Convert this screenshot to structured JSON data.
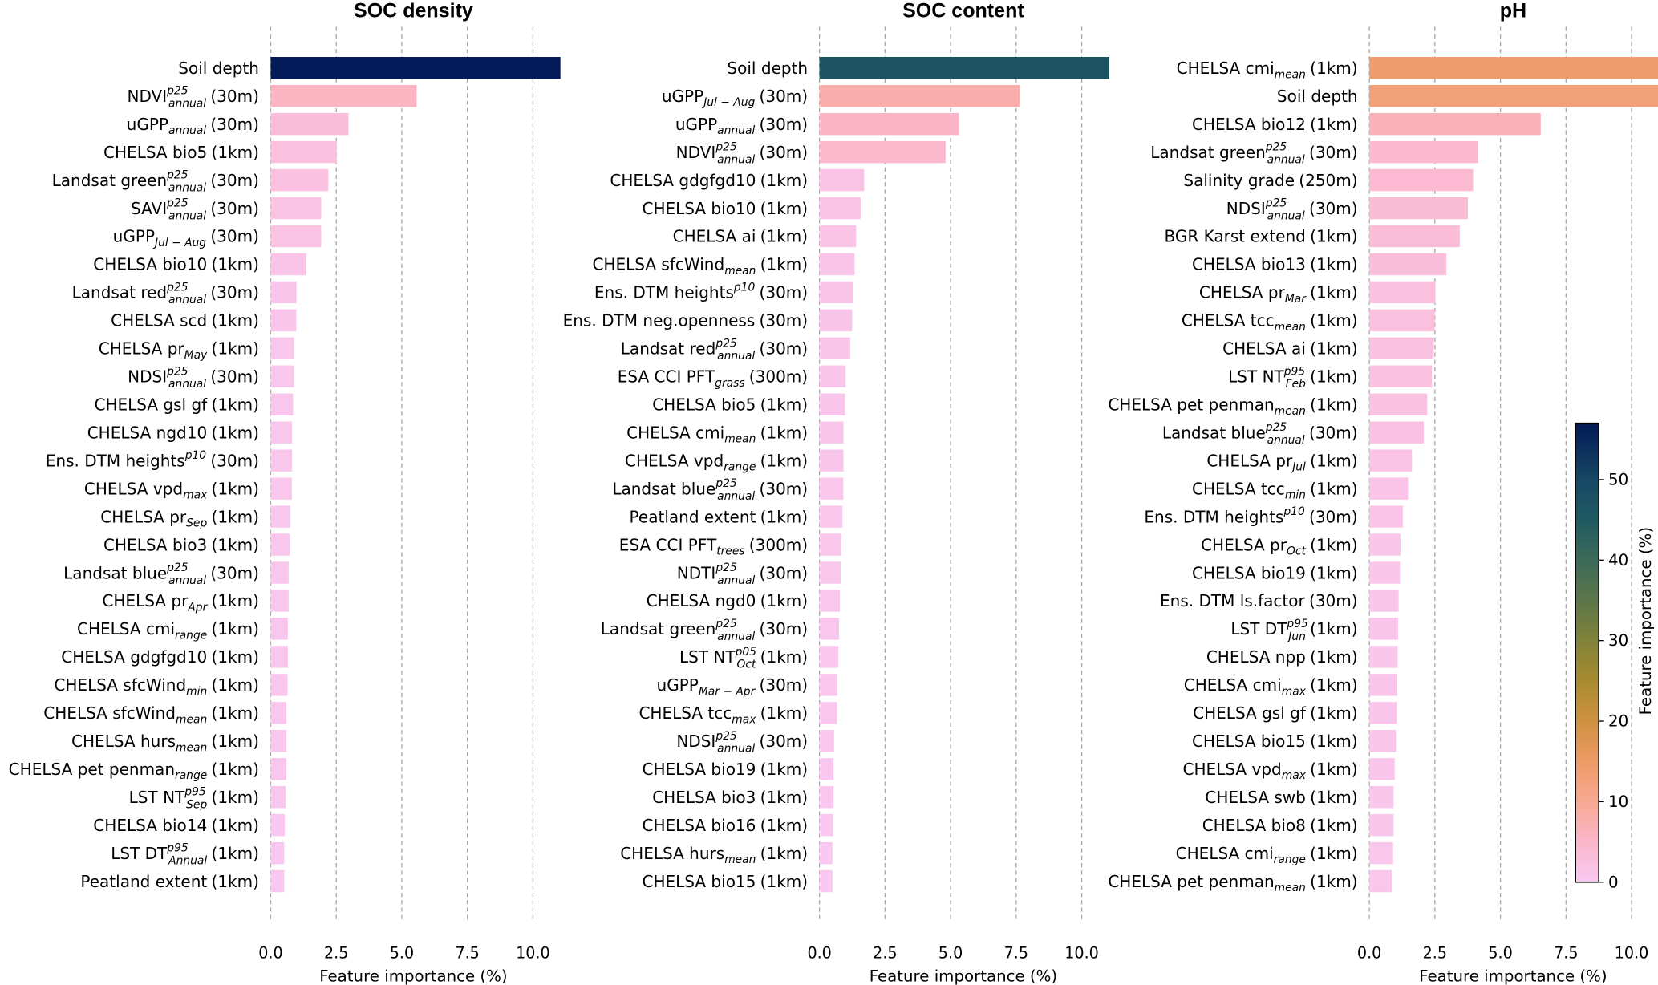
{
  "chart_data": [
    {
      "type": "bar",
      "orientation": "horizontal",
      "title": "SOC density",
      "xlabel": "Feature importance (%)",
      "xlim": [
        0,
        11
      ],
      "xticks": [
        "0.0",
        "2.5",
        "5.0",
        "7.5",
        "10.0"
      ],
      "xtick_values": [
        0,
        2.5,
        5,
        7.5,
        10
      ],
      "grid": "vertical dashed",
      "features": [
        {
          "base": "Soil depth",
          "sub": "",
          "sup": "",
          "res": "",
          "value": 57
        },
        {
          "base": "NDVI",
          "sub": "annual",
          "sup": "p25",
          "res": "(30m)",
          "value": 5.55
        },
        {
          "base": "uGPP",
          "sub": "annual",
          "sup": "",
          "res": "(30m)",
          "value": 2.95
        },
        {
          "base": "CHELSA bio5",
          "sub": "",
          "sup": "",
          "res": "(1km)",
          "value": 2.5
        },
        {
          "base": "Landsat green",
          "sub": "annual",
          "sup": "p25",
          "res": "(30m)",
          "value": 2.18
        },
        {
          "base": "SAVI",
          "sub": "annual",
          "sup": "p25",
          "res": "(30m)",
          "value": 1.91
        },
        {
          "base": "uGPP",
          "sub": "Jul − Aug",
          "sup": "",
          "res": "(30m)",
          "value": 1.91
        },
        {
          "base": "CHELSA bio10",
          "sub": "",
          "sup": "",
          "res": "(1km)",
          "value": 1.34
        },
        {
          "base": "Landsat red",
          "sub": "annual",
          "sup": "p25",
          "res": "(30m)",
          "value": 0.97
        },
        {
          "base": "CHELSA scd",
          "sub": "",
          "sup": "",
          "res": "(1km)",
          "value": 0.96
        },
        {
          "base": "CHELSA pr",
          "sub": "May",
          "sup": "",
          "res": "(1km)",
          "value": 0.87
        },
        {
          "base": "NDSI",
          "sub": "annual",
          "sup": "p25",
          "res": "(30m)",
          "value": 0.87
        },
        {
          "base": "CHELSA gsl gf",
          "sub": "",
          "sup": "",
          "res": "(1km)",
          "value": 0.84
        },
        {
          "base": "CHELSA ngd10",
          "sub": "",
          "sup": "",
          "res": "(1km)",
          "value": 0.8
        },
        {
          "base": "Ens. DTM heights",
          "sub": "",
          "sup": "p10",
          "res": "(30m)",
          "value": 0.8
        },
        {
          "base": "CHELSA vpd",
          "sub": "max",
          "sup": "",
          "res": "(1km)",
          "value": 0.79
        },
        {
          "base": "CHELSA pr",
          "sub": "Sep",
          "sup": "",
          "res": "(1km)",
          "value": 0.73
        },
        {
          "base": "CHELSA bio3",
          "sub": "",
          "sup": "",
          "res": "(1km)",
          "value": 0.71
        },
        {
          "base": "Landsat blue",
          "sub": "annual",
          "sup": "p25",
          "res": "(30m)",
          "value": 0.67
        },
        {
          "base": "CHELSA pr",
          "sub": "Apr",
          "sup": "",
          "res": "(1km)",
          "value": 0.67
        },
        {
          "base": "CHELSA cmi",
          "sub": "range",
          "sup": "",
          "res": "(1km)",
          "value": 0.64
        },
        {
          "base": "CHELSA gdgfgd10",
          "sub": "",
          "sup": "",
          "res": "(1km)",
          "value": 0.64
        },
        {
          "base": "CHELSA sfcWind",
          "sub": "min",
          "sup": "",
          "res": "(1km)",
          "value": 0.63
        },
        {
          "base": "CHELSA sfcWind",
          "sub": "mean",
          "sup": "",
          "res": "(1km)",
          "value": 0.58
        },
        {
          "base": "CHELSA hurs",
          "sub": "mean",
          "sup": "",
          "res": "(1km)",
          "value": 0.58
        },
        {
          "base": "CHELSA pet penman",
          "sub": "range",
          "sup": "",
          "res": "(1km)",
          "value": 0.58
        },
        {
          "base": "LST NT",
          "sub": "Sep",
          "sup": "p95",
          "res": "(1km)",
          "value": 0.55
        },
        {
          "base": "CHELSA bio14",
          "sub": "",
          "sup": "",
          "res": "(1km)",
          "value": 0.52
        },
        {
          "base": "LST DT",
          "sub": "Annual",
          "sup": "p95",
          "res": "(1km)",
          "value": 0.5
        },
        {
          "base": "Peatland extent",
          "sub": "",
          "sup": "",
          "res": "(1km)",
          "value": 0.5
        }
      ]
    },
    {
      "type": "bar",
      "orientation": "horizontal",
      "title": "SOC content",
      "xlabel": "Feature importance (%)",
      "xlim": [
        0,
        11
      ],
      "xticks": [
        "0.0",
        "2.5",
        "5.0",
        "7.5",
        "10.0"
      ],
      "xtick_values": [
        0,
        2.5,
        5,
        7.5,
        10
      ],
      "grid": "vertical dashed",
      "features": [
        {
          "base": "Soil depth",
          "sub": "",
          "sup": "",
          "res": "",
          "value": 47
        },
        {
          "base": "uGPP",
          "sub": "Jul − Aug",
          "sup": "",
          "res": "(30m)",
          "value": 7.62
        },
        {
          "base": "uGPP",
          "sub": "annual",
          "sup": "",
          "res": "(30m)",
          "value": 5.3
        },
        {
          "base": "NDVI",
          "sub": "annual",
          "sup": "p25",
          "res": "(30m)",
          "value": 4.79
        },
        {
          "base": "CHELSA gdgfgd10",
          "sub": "",
          "sup": "",
          "res": "(1km)",
          "value": 1.69
        },
        {
          "base": "CHELSA bio10",
          "sub": "",
          "sup": "",
          "res": "(1km)",
          "value": 1.55
        },
        {
          "base": "CHELSA ai",
          "sub": "",
          "sup": "",
          "res": "(1km)",
          "value": 1.38
        },
        {
          "base": "CHELSA sfcWind",
          "sub": "mean",
          "sup": "",
          "res": "(1km)",
          "value": 1.32
        },
        {
          "base": "Ens. DTM heights",
          "sub": "",
          "sup": "p10",
          "res": "(30m)",
          "value": 1.28
        },
        {
          "base": "Ens. DTM neg.openness",
          "sub": "",
          "sup": "",
          "res": "(30m)",
          "value": 1.23
        },
        {
          "base": "Landsat red",
          "sub": "annual",
          "sup": "p25",
          "res": "(30m)",
          "value": 1.16
        },
        {
          "base": "ESA CCI PFT",
          "sub": "grass",
          "sup": "",
          "res": "(300m)",
          "value": 0.98
        },
        {
          "base": "CHELSA bio5",
          "sub": "",
          "sup": "",
          "res": "(1km)",
          "value": 0.95
        },
        {
          "base": "CHELSA cmi",
          "sub": "mean",
          "sup": "",
          "res": "(1km)",
          "value": 0.9
        },
        {
          "base": "CHELSA vpd",
          "sub": "range",
          "sup": "",
          "res": "(1km)",
          "value": 0.9
        },
        {
          "base": "Landsat blue",
          "sub": "annual",
          "sup": "p25",
          "res": "(30m)",
          "value": 0.89
        },
        {
          "base": "Peatland extent",
          "sub": "",
          "sup": "",
          "res": "(1km)",
          "value": 0.86
        },
        {
          "base": "ESA CCI PFT",
          "sub": "trees",
          "sup": "",
          "res": "(300m)",
          "value": 0.81
        },
        {
          "base": "NDTI",
          "sub": "annual",
          "sup": "p25",
          "res": "(30m)",
          "value": 0.79
        },
        {
          "base": "CHELSA ngd0",
          "sub": "",
          "sup": "",
          "res": "(1km)",
          "value": 0.76
        },
        {
          "base": "Landsat green",
          "sub": "annual",
          "sup": "p25",
          "res": "(30m)",
          "value": 0.73
        },
        {
          "base": "LST NT",
          "sub": "Oct",
          "sup": "p05",
          "res": "(1km)",
          "value": 0.7
        },
        {
          "base": "uGPP",
          "sub": "Mar − Apr",
          "sup": "",
          "res": "(30m)",
          "value": 0.66
        },
        {
          "base": "CHELSA tcc",
          "sub": "max",
          "sup": "",
          "res": "(1km)",
          "value": 0.65
        },
        {
          "base": "NDSI",
          "sub": "annual",
          "sup": "p25",
          "res": "(30m)",
          "value": 0.54
        },
        {
          "base": "CHELSA bio19",
          "sub": "",
          "sup": "",
          "res": "(1km)",
          "value": 0.52
        },
        {
          "base": "CHELSA bio3",
          "sub": "",
          "sup": "",
          "res": "(1km)",
          "value": 0.52
        },
        {
          "base": "CHELSA bio16",
          "sub": "",
          "sup": "",
          "res": "(1km)",
          "value": 0.5
        },
        {
          "base": "CHELSA hurs",
          "sub": "mean",
          "sup": "",
          "res": "(1km)",
          "value": 0.48
        },
        {
          "base": "CHELSA bio15",
          "sub": "",
          "sup": "",
          "res": "(1km)",
          "value": 0.48
        }
      ]
    },
    {
      "type": "bar",
      "orientation": "horizontal",
      "title": "pH",
      "xlabel": "Feature importance (%)",
      "xlim": [
        0,
        11
      ],
      "xticks": [
        "0.0",
        "2.5",
        "5.0",
        "7.5",
        "10.0"
      ],
      "xtick_values": [
        0,
        2.5,
        5,
        7.5,
        10
      ],
      "grid": "vertical dashed",
      "features": [
        {
          "base": "CHELSA cmi",
          "sub": "mean",
          "sup": "",
          "res": "(1km)",
          "value": 14
        },
        {
          "base": "Soil depth",
          "sub": "",
          "sup": "",
          "res": "",
          "value": 13
        },
        {
          "base": "CHELSA bio12",
          "sub": "",
          "sup": "",
          "res": "(1km)",
          "value": 6.52
        },
        {
          "base": "Landsat green",
          "sub": "annual",
          "sup": "p25",
          "res": "(30m)",
          "value": 4.13
        },
        {
          "base": "Salinity grade",
          "sub": "",
          "sup": "",
          "res": "(250m)",
          "value": 3.94
        },
        {
          "base": "NDSI",
          "sub": "annual",
          "sup": "p25",
          "res": "(30m)",
          "value": 3.74
        },
        {
          "base": "BGR Karst extend",
          "sub": "",
          "sup": "",
          "res": "(1km)",
          "value": 3.43
        },
        {
          "base": "CHELSA bio13",
          "sub": "",
          "sup": "",
          "res": "(1km)",
          "value": 2.92
        },
        {
          "base": "CHELSA pr",
          "sub": "Mar",
          "sup": "",
          "res": "(1km)",
          "value": 2.5
        },
        {
          "base": "CHELSA tcc",
          "sub": "mean",
          "sup": "",
          "res": "(1km)",
          "value": 2.48
        },
        {
          "base": "CHELSA ai",
          "sub": "",
          "sup": "",
          "res": "(1km)",
          "value": 2.44
        },
        {
          "base": "LST NT",
          "sub": "Feb",
          "sup": "p95",
          "res": "(1km)",
          "value": 2.37
        },
        {
          "base": "CHELSA pet penman",
          "sub": "mean",
          "sup": "",
          "res": "(1km)",
          "value": 2.19
        },
        {
          "base": "Landsat blue",
          "sub": "annual",
          "sup": "p25",
          "res": "(30m)",
          "value": 2.06
        },
        {
          "base": "CHELSA pr",
          "sub": "Jul",
          "sup": "",
          "res": "(1km)",
          "value": 1.61
        },
        {
          "base": "CHELSA tcc",
          "sub": "min",
          "sup": "",
          "res": "(1km)",
          "value": 1.46
        },
        {
          "base": "Ens. DTM heights",
          "sub": "",
          "sup": "p10",
          "res": "(30m)",
          "value": 1.26
        },
        {
          "base": "CHELSA pr",
          "sub": "Oct",
          "sup": "",
          "res": "(1km)",
          "value": 1.17
        },
        {
          "base": "CHELSA bio19",
          "sub": "",
          "sup": "",
          "res": "(1km)",
          "value": 1.15
        },
        {
          "base": "Ens. DTM ls.factor",
          "sub": "",
          "sup": "",
          "res": "(30m)",
          "value": 1.1
        },
        {
          "base": "LST DT",
          "sub": "Jun",
          "sup": "p95",
          "res": "(1km)",
          "value": 1.08
        },
        {
          "base": "CHELSA npp",
          "sub": "",
          "sup": "",
          "res": "(1km)",
          "value": 1.06
        },
        {
          "base": "CHELSA cmi",
          "sub": "max",
          "sup": "",
          "res": "(1km)",
          "value": 1.05
        },
        {
          "base": "CHELSA gsl gf",
          "sub": "",
          "sup": "",
          "res": "(1km)",
          "value": 1.03
        },
        {
          "base": "CHELSA bio15",
          "sub": "",
          "sup": "",
          "res": "(1km)",
          "value": 1.0
        },
        {
          "base": "CHELSA vpd",
          "sub": "max",
          "sup": "",
          "res": "(1km)",
          "value": 0.95
        },
        {
          "base": "CHELSA swb",
          "sub": "",
          "sup": "",
          "res": "(1km)",
          "value": 0.91
        },
        {
          "base": "CHELSA bio8",
          "sub": "",
          "sup": "",
          "res": "(1km)",
          "value": 0.91
        },
        {
          "base": "CHELSA cmi",
          "sub": "range",
          "sup": "",
          "res": "(1km)",
          "value": 0.89
        },
        {
          "base": "CHELSA pet penman",
          "sub": "mean",
          "sup": "",
          "res": "(1km)",
          "value": 0.84
        }
      ]
    }
  ],
  "colorbar": {
    "label": "Feature importance (%)",
    "range": [
      0,
      57
    ],
    "ticks": [
      0,
      10,
      20,
      30,
      40,
      50
    ],
    "tick_labels": [
      "0",
      "10",
      "20",
      "30",
      "40",
      "50"
    ],
    "colormap_stops": [
      {
        "v": 0,
        "c": "#f9c9f3"
      },
      {
        "v": 5,
        "c": "#fbb6c9"
      },
      {
        "v": 10,
        "c": "#f9a993"
      },
      {
        "v": 15,
        "c": "#ee9a65"
      },
      {
        "v": 20,
        "c": "#cf9140"
      },
      {
        "v": 25,
        "c": "#a88b2f"
      },
      {
        "v": 30,
        "c": "#808238"
      },
      {
        "v": 35,
        "c": "#5c764a"
      },
      {
        "v": 40,
        "c": "#3b6a58"
      },
      {
        "v": 45,
        "c": "#1f5a62"
      },
      {
        "v": 50,
        "c": "#164864"
      },
      {
        "v": 57,
        "c": "#031a58"
      }
    ]
  }
}
